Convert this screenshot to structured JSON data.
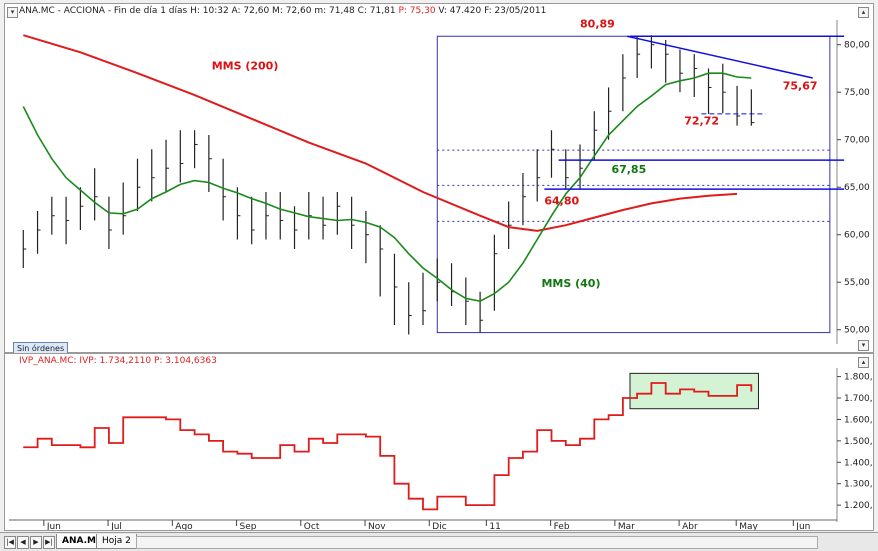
{
  "window": {
    "header_main": "ANA.MC - ACCIONA - Fin de día 1 días  H: 10:32  A: 72,60  M: 72,60  m: 71,48  C: 71,81",
    "header_main_red": "P: 75,30",
    "header_main_tail": "V: 47.420  F: 23/05/2011",
    "header_ind": "IVP_ANA.MC: IVP: 1.734,2110",
    "header_ind_red": "P: 3.104,6363",
    "status_label": "Sin órdenes",
    "icon_up": "triangle-up-icon",
    "icon_down": "triangle-down-icon"
  },
  "tabs": {
    "nav": [
      "|◀",
      "◀",
      "▶",
      "▶|"
    ],
    "sheets": [
      "ANA.MC",
      "Hoja 2"
    ],
    "active": 0
  },
  "colors": {
    "bars": "#222222",
    "sma200": "#e01b1b",
    "sma40": "#1a8a1a",
    "trend": "#1010dd",
    "box": "#3333aa",
    "ivp": "#e01b1b",
    "annot_red": "#dd1111",
    "annot_green": "#117711",
    "highlight_fill": "#d4f2d4"
  },
  "chart_data": [
    {
      "type": "ohlc",
      "x_unit": "trading weeks from early June 2010",
      "x": [
        0,
        1,
        2,
        3,
        4,
        5,
        6,
        7,
        8,
        9,
        10,
        11,
        12,
        13,
        14,
        15,
        16,
        17,
        18,
        19,
        20,
        21,
        22,
        23,
        24,
        25,
        26,
        27,
        28,
        29,
        30,
        31,
        32,
        33,
        34,
        35,
        36,
        37,
        38,
        39,
        40,
        41,
        42,
        43,
        44,
        45,
        46,
        47,
        48,
        49,
        50,
        51
      ],
      "x_ticks": [
        "Jun",
        "Jul",
        "Ago",
        "Sep",
        "Oct",
        "Nov",
        "Dic",
        "11",
        "Feb",
        "Mar",
        "Abr",
        "May",
        "Jun"
      ],
      "x_tick_pos": [
        2,
        6.5,
        11,
        15.5,
        20,
        24.5,
        29,
        33,
        37.5,
        42,
        46.5,
        50.5,
        54.5
      ],
      "xlim": [
        -1,
        57
      ],
      "close": [
        58.5,
        60.5,
        62,
        61.5,
        63,
        64,
        60.5,
        62,
        65,
        66,
        67,
        67.5,
        69.5,
        68,
        64,
        62,
        60.5,
        62,
        61.5,
        60.5,
        62,
        61,
        63,
        61,
        60,
        58.5,
        54.5,
        51.5,
        52,
        55,
        54,
        53,
        51,
        58,
        61,
        64,
        66,
        69,
        66,
        67,
        71,
        73,
        76.5,
        79,
        80,
        79,
        77,
        77.5,
        75.5,
        75,
        72.5,
        71.8
      ],
      "high": [
        60.5,
        62.5,
        64,
        64,
        65,
        67,
        64,
        65.5,
        68,
        69,
        70,
        71,
        71,
        70.5,
        68,
        65,
        64,
        64.5,
        64.5,
        63,
        64.5,
        64,
        64.5,
        64,
        62.5,
        61,
        58,
        55,
        56,
        57.5,
        57,
        55.5,
        54,
        60,
        63.5,
        66.5,
        69,
        71,
        69,
        69.5,
        73,
        75.5,
        79,
        80.89,
        81,
        80.5,
        79.5,
        79,
        77.5,
        78,
        75.67,
        75.3
      ],
      "low": [
        56.5,
        58,
        60,
        59,
        60.5,
        61.5,
        58.5,
        60,
        62.5,
        63.5,
        64.5,
        65.5,
        67,
        64.5,
        61.5,
        59.5,
        59,
        59.5,
        59.5,
        58.5,
        59.5,
        59.5,
        60,
        58.5,
        57,
        53.5,
        50.5,
        49.5,
        50.5,
        53,
        52.5,
        50.5,
        49.7,
        52,
        58.5,
        61,
        63.5,
        66,
        64.8,
        64.8,
        67.85,
        70,
        73,
        76.5,
        77.5,
        76,
        75,
        74.5,
        72.72,
        72.8,
        71.48,
        71.48
      ],
      "ylim": [
        48.5,
        82.6
      ],
      "y_ticks": [
        50,
        55,
        60,
        65,
        70,
        75,
        80
      ],
      "y_tick_labels": [
        "50,00",
        "55,00",
        "60,00",
        "65,00",
        "70,00",
        "75,00",
        "80,00"
      ],
      "sma200": {
        "name": "MMS (200)",
        "x": [
          0,
          4,
          8,
          12,
          16,
          20,
          24,
          28,
          32,
          34,
          36,
          38,
          40,
          42,
          44,
          46,
          48,
          50
        ],
        "y": [
          81,
          79.2,
          77,
          74.7,
          72.2,
          69.7,
          67.5,
          64.5,
          62,
          60.8,
          60.4,
          61,
          61.8,
          62.6,
          63.3,
          63.8,
          64.1,
          64.3
        ]
      },
      "sma40": {
        "name": "MMS (40)",
        "x": [
          0,
          1,
          2,
          3,
          4,
          5,
          6,
          7,
          8,
          9,
          10,
          11,
          12,
          13,
          14,
          15,
          16,
          17,
          18,
          19,
          20,
          21,
          22,
          23,
          24,
          25,
          26,
          27,
          28,
          29,
          30,
          31,
          32,
          33,
          34,
          35,
          36,
          37,
          38,
          39,
          40,
          41,
          42,
          43,
          44,
          45,
          46,
          47,
          48,
          49,
          50,
          51
        ],
        "y": [
          73.5,
          70.5,
          68,
          66,
          64.7,
          63.4,
          62.3,
          62.2,
          62.7,
          63.8,
          64.5,
          65.3,
          65.7,
          65.5,
          64.9,
          64.4,
          63.8,
          63.3,
          62.7,
          62.3,
          61.9,
          61.7,
          61.5,
          61.6,
          61.3,
          60.8,
          59.7,
          58,
          56.5,
          55.4,
          54.2,
          53.3,
          53,
          53.8,
          55,
          57,
          59.5,
          62,
          64.3,
          66,
          68.3,
          70.5,
          72,
          73.5,
          74.6,
          75.8,
          76.2,
          76.5,
          77,
          77,
          76.6,
          76.5
        ]
      },
      "trend": {
        "x": [
          42.3,
          55.3
        ],
        "y": [
          80.89,
          76.5
        ]
      },
      "resistance": {
        "x": [
          42.5,
          57.5
        ],
        "y": 80.89
      },
      "support_line": {
        "x": [
          36.5,
          57.5
        ],
        "y": 64.8
      },
      "support_line_2": {
        "x": [
          37.5,
          57.5
        ],
        "y": 67.85
      },
      "dashed": {
        "x": [
          47.5,
          52
        ],
        "y": 72.72
      },
      "dotted_levels": [
        68.9,
        65.2,
        61.4
      ],
      "box": {
        "x": [
          29,
          56.5
        ],
        "y": [
          49.7,
          80.89
        ]
      },
      "annotations": [
        {
          "text": "80,89",
          "x": 39,
          "y": 81.8,
          "color": "red"
        },
        {
          "text": "75,67",
          "x": 53.2,
          "y": 75.3,
          "color": "red"
        },
        {
          "text": "72,72",
          "x": 46.3,
          "y": 71.6,
          "color": "red"
        },
        {
          "text": "67,85",
          "x": 41.2,
          "y": 66.5,
          "color": "green"
        },
        {
          "text": "64,80",
          "x": 36.5,
          "y": 63.2,
          "color": "red"
        },
        {
          "text": "MMS (200)",
          "x": 13.2,
          "y": 77.4,
          "color": "red"
        },
        {
          "text": "MMS (40)",
          "x": 36.3,
          "y": 54.5,
          "color": "green"
        }
      ]
    },
    {
      "type": "line",
      "series": [
        {
          "name": "IVP_ANA.MC",
          "values": "see x/y"
        }
      ],
      "x": [
        0,
        1,
        2,
        3,
        4,
        5,
        6,
        7,
        8,
        9,
        10,
        11,
        12,
        13,
        14,
        15,
        16,
        17,
        18,
        19,
        20,
        21,
        22,
        23,
        24,
        25,
        26,
        27,
        28,
        29,
        30,
        31,
        32,
        33,
        34,
        35,
        36,
        37,
        38,
        39,
        40,
        41,
        42,
        43,
        44,
        45,
        46,
        47,
        48,
        49,
        50,
        51
      ],
      "y": [
        1470,
        1510,
        1480,
        1480,
        1470,
        1560,
        1490,
        1610,
        1610,
        1610,
        1600,
        1550,
        1530,
        1500,
        1450,
        1440,
        1420,
        1420,
        1480,
        1450,
        1510,
        1490,
        1530,
        1530,
        1520,
        1430,
        1300,
        1230,
        1180,
        1240,
        1240,
        1200,
        1200,
        1340,
        1420,
        1450,
        1550,
        1500,
        1480,
        1510,
        1600,
        1620,
        1700,
        1720,
        1770,
        1720,
        1740,
        1730,
        1710,
        1710,
        1760,
        1730
      ],
      "ylim": [
        1140,
        1840
      ],
      "y_ticks": [
        1200,
        1300,
        1400,
        1500,
        1600,
        1700,
        1800
      ],
      "y_tick_labels": [
        "1.200,0",
        "1.300,0",
        "1.400,0",
        "1.500,0",
        "1.600,0",
        "1.700,0",
        "1.800,0"
      ],
      "highlight": {
        "x": [
          42.5,
          51.5
        ],
        "y": [
          1650,
          1815
        ]
      }
    }
  ]
}
